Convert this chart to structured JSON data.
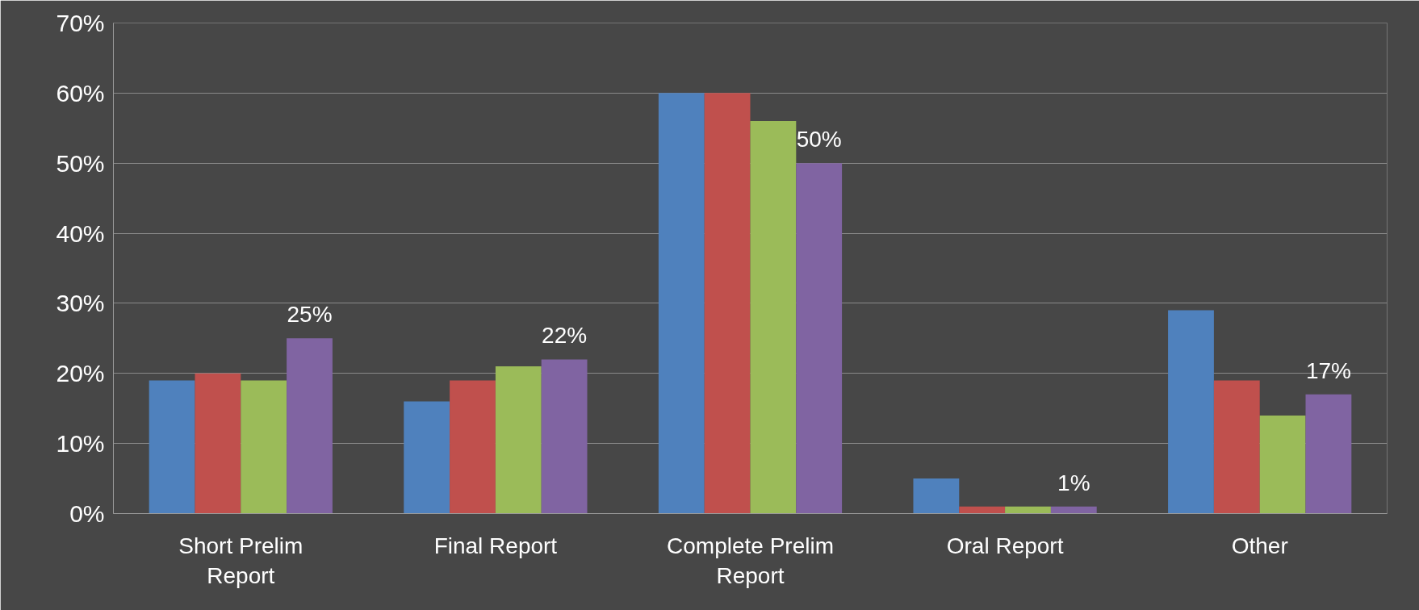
{
  "chart_data": {
    "type": "bar",
    "categories": [
      "Short Prelim Report",
      "Final Report",
      "Complete Prelim Report",
      "Oral Report",
      "Other"
    ],
    "series": [
      {
        "color": "#4f81bd",
        "values": [
          19,
          16,
          60,
          5,
          29
        ]
      },
      {
        "color": "#c0504d",
        "values": [
          20,
          19,
          60,
          1,
          19
        ]
      },
      {
        "color": "#9bbb59",
        "values": [
          19,
          21,
          56,
          1,
          14
        ]
      },
      {
        "color": "#8064a2",
        "values": [
          25,
          22,
          50,
          1,
          17
        ],
        "value_labels": [
          "25%",
          "22%",
          "50%",
          "1%",
          "17%"
        ]
      }
    ],
    "ylim": [
      0,
      70
    ],
    "yticks": [
      {
        "value": 0,
        "label": "0%"
      },
      {
        "value": 10,
        "label": "10%"
      },
      {
        "value": 20,
        "label": "20%"
      },
      {
        "value": 30,
        "label": "30%"
      },
      {
        "value": 40,
        "label": "40%"
      },
      {
        "value": 50,
        "label": "50%"
      },
      {
        "value": 60,
        "label": "60%"
      },
      {
        "value": 70,
        "label": "70%"
      }
    ],
    "grid": "y"
  }
}
